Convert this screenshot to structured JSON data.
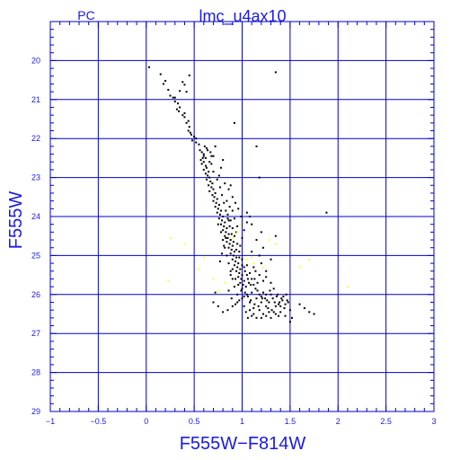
{
  "header": {
    "camera_label": "PC",
    "title": "lmc_u4ax10"
  },
  "colors": {
    "axis": "#0000cc",
    "grid": "#0000cc",
    "text": "#1a1ae6",
    "star_main": "#000000",
    "star_highlight": "#ffff33"
  },
  "chart_data": {
    "type": "scatter",
    "title": "lmc_u4ax10",
    "subtitle": "PC",
    "xlabel": "F555W−F814W",
    "ylabel": "F555W",
    "xlim": [
      -1,
      3
    ],
    "ylim": [
      29,
      19
    ],
    "y_inverted": true,
    "grid": true,
    "x_ticks": [
      -1,
      -0.5,
      0,
      0.5,
      1,
      1.5,
      2,
      2.5,
      3
    ],
    "x_tick_labels": [
      "−1",
      "−0.5",
      "0",
      "0.5",
      "1",
      "1.5",
      "2",
      "2.5",
      "3"
    ],
    "y_ticks": [
      20,
      21,
      22,
      23,
      24,
      25,
      26,
      27,
      28,
      29
    ],
    "y_tick_labels": [
      "20",
      "21",
      "22",
      "23",
      "24",
      "25",
      "26",
      "27",
      "28",
      "29"
    ],
    "series": [
      {
        "color": "#000000",
        "points": [
          [
            0.03,
            20.17
          ],
          [
            0.15,
            20.35
          ],
          [
            0.18,
            20.6
          ],
          [
            0.2,
            20.52
          ],
          [
            0.23,
            20.75
          ],
          [
            0.25,
            20.9
          ],
          [
            0.28,
            20.95
          ],
          [
            0.3,
            21.05
          ],
          [
            0.33,
            21.1
          ],
          [
            0.35,
            21.2
          ],
          [
            0.32,
            21.25
          ],
          [
            0.38,
            21.4
          ],
          [
            0.4,
            21.35
          ],
          [
            0.42,
            21.6
          ],
          [
            0.45,
            21.7
          ],
          [
            0.44,
            21.8
          ],
          [
            0.47,
            21.9
          ],
          [
            0.5,
            21.95
          ],
          [
            0.48,
            22.05
          ],
          [
            0.52,
            22.1
          ],
          [
            0.4,
            20.62
          ],
          [
            0.35,
            20.78
          ],
          [
            0.42,
            20.8
          ],
          [
            0.38,
            20.55
          ],
          [
            0.45,
            20.38
          ],
          [
            0.3,
            20.95
          ],
          [
            0.34,
            21.3
          ],
          [
            0.4,
            21.45
          ],
          [
            0.44,
            21.55
          ],
          [
            0.46,
            21.85
          ],
          [
            0.52,
            22.0
          ],
          [
            0.55,
            22.15
          ],
          [
            0.56,
            22.3
          ],
          [
            0.58,
            22.35
          ],
          [
            0.6,
            22.45
          ],
          [
            0.57,
            22.55
          ],
          [
            0.6,
            22.6
          ],
          [
            0.62,
            22.7
          ],
          [
            0.63,
            22.75
          ],
          [
            0.6,
            22.8
          ],
          [
            0.65,
            22.85
          ],
          [
            0.62,
            22.9
          ],
          [
            0.64,
            22.95
          ],
          [
            0.66,
            23.0
          ],
          [
            0.63,
            23.05
          ],
          [
            0.67,
            23.1
          ],
          [
            0.69,
            23.15
          ],
          [
            0.65,
            23.2
          ],
          [
            0.68,
            23.25
          ],
          [
            0.7,
            23.3
          ],
          [
            0.66,
            23.35
          ],
          [
            0.72,
            23.4
          ],
          [
            0.69,
            23.45
          ],
          [
            0.71,
            23.5
          ],
          [
            0.74,
            23.55
          ],
          [
            0.7,
            23.6
          ],
          [
            0.73,
            23.65
          ],
          [
            0.76,
            23.7
          ],
          [
            0.72,
            23.75
          ],
          [
            0.75,
            23.8
          ],
          [
            0.78,
            23.85
          ],
          [
            0.74,
            23.9
          ],
          [
            0.77,
            23.95
          ],
          [
            0.8,
            24.0
          ],
          [
            0.76,
            24.05
          ],
          [
            0.79,
            24.1
          ],
          [
            0.82,
            24.15
          ],
          [
            0.78,
            24.2
          ],
          [
            0.81,
            24.25
          ],
          [
            0.84,
            24.3
          ],
          [
            0.8,
            24.35
          ],
          [
            0.83,
            24.4
          ],
          [
            0.86,
            24.45
          ],
          [
            0.82,
            24.5
          ],
          [
            0.85,
            24.55
          ],
          [
            0.88,
            24.6
          ],
          [
            0.84,
            24.65
          ],
          [
            0.87,
            24.7
          ],
          [
            0.9,
            24.75
          ],
          [
            0.86,
            24.8
          ],
          [
            0.89,
            24.85
          ],
          [
            0.92,
            24.9
          ],
          [
            0.88,
            24.95
          ],
          [
            0.91,
            25.0
          ],
          [
            0.94,
            25.05
          ],
          [
            0.9,
            25.1
          ],
          [
            0.93,
            25.15
          ],
          [
            0.96,
            25.2
          ],
          [
            0.92,
            25.25
          ],
          [
            0.95,
            25.3
          ],
          [
            0.98,
            25.35
          ],
          [
            0.94,
            25.4
          ],
          [
            0.97,
            25.45
          ],
          [
            1.0,
            25.5
          ],
          [
            0.96,
            25.55
          ],
          [
            0.99,
            25.6
          ],
          [
            1.02,
            25.65
          ],
          [
            0.98,
            25.7
          ],
          [
            1.01,
            25.75
          ],
          [
            1.04,
            25.8
          ],
          [
            0.85,
            23.95
          ],
          [
            0.88,
            24.1
          ],
          [
            0.9,
            24.3
          ],
          [
            0.92,
            24.5
          ],
          [
            0.95,
            24.7
          ],
          [
            0.97,
            24.9
          ],
          [
            1.0,
            25.1
          ],
          [
            1.02,
            25.3
          ],
          [
            1.05,
            25.5
          ],
          [
            1.07,
            25.7
          ],
          [
            0.75,
            24.2
          ],
          [
            0.78,
            24.4
          ],
          [
            0.8,
            24.6
          ],
          [
            0.82,
            24.8
          ],
          [
            0.84,
            25.0
          ],
          [
            0.86,
            25.2
          ],
          [
            0.88,
            25.4
          ],
          [
            0.9,
            25.6
          ],
          [
            0.92,
            25.8
          ],
          [
            0.95,
            26.0
          ],
          [
            1.1,
            25.6
          ],
          [
            1.12,
            25.75
          ],
          [
            1.14,
            25.85
          ],
          [
            1.16,
            25.9
          ],
          [
            1.18,
            26.0
          ],
          [
            1.2,
            26.05
          ],
          [
            1.22,
            25.95
          ],
          [
            1.24,
            26.1
          ],
          [
            1.26,
            26.15
          ],
          [
            1.28,
            26.2
          ],
          [
            1.3,
            26.0
          ],
          [
            1.32,
            26.1
          ],
          [
            1.34,
            26.2
          ],
          [
            1.36,
            26.05
          ],
          [
            1.38,
            26.25
          ],
          [
            1.4,
            26.3
          ],
          [
            1.42,
            26.15
          ],
          [
            1.44,
            26.35
          ],
          [
            1.46,
            26.0
          ],
          [
            1.48,
            26.2
          ],
          [
            1.1,
            25.95
          ],
          [
            1.15,
            26.1
          ],
          [
            1.2,
            26.2
          ],
          [
            1.25,
            26.3
          ],
          [
            1.05,
            26.0
          ],
          [
            1.08,
            26.2
          ],
          [
            1.12,
            26.35
          ],
          [
            1.18,
            26.4
          ],
          [
            1.22,
            26.5
          ],
          [
            1.28,
            26.45
          ],
          [
            1.0,
            26.1
          ],
          [
            1.02,
            26.3
          ],
          [
            1.04,
            26.45
          ],
          [
            0.95,
            26.2
          ],
          [
            0.9,
            26.3
          ],
          [
            0.85,
            26.4
          ],
          [
            0.8,
            26.45
          ],
          [
            0.75,
            26.3
          ],
          [
            0.7,
            26.2
          ],
          [
            0.72,
            25.95
          ],
          [
            1.33,
            26.45
          ],
          [
            1.38,
            26.55
          ],
          [
            1.5,
            26.4
          ],
          [
            1.52,
            26.6
          ],
          [
            1.6,
            26.25
          ],
          [
            1.65,
            26.35
          ],
          [
            1.7,
            26.45
          ],
          [
            1.75,
            26.5
          ],
          [
            1.5,
            26.7
          ],
          [
            1.45,
            26.55
          ],
          [
            1.2,
            25.2
          ],
          [
            1.25,
            25.4
          ],
          [
            1.18,
            25.0
          ],
          [
            1.22,
            24.8
          ],
          [
            1.3,
            25.1
          ],
          [
            1.15,
            24.6
          ],
          [
            1.1,
            24.9
          ],
          [
            1.12,
            25.3
          ],
          [
            1.08,
            25.45
          ],
          [
            1.05,
            25.25
          ],
          [
            0.98,
            24.75
          ],
          [
            1.0,
            24.55
          ],
          [
            1.02,
            24.35
          ],
          [
            1.05,
            24.15
          ],
          [
            1.08,
            24.0
          ],
          [
            0.95,
            24.25
          ],
          [
            0.92,
            24.05
          ],
          [
            0.9,
            23.85
          ],
          [
            0.87,
            23.75
          ],
          [
            0.84,
            23.6
          ],
          [
            1.35,
            20.3
          ],
          [
            1.15,
            22.2
          ],
          [
            1.18,
            23.0
          ],
          [
            0.92,
            21.6
          ],
          [
            0.88,
            23.2
          ],
          [
            1.88,
            23.9
          ],
          [
            1.35,
            24.5
          ],
          [
            1.2,
            24.4
          ],
          [
            1.1,
            24.2
          ],
          [
            1.05,
            23.9
          ],
          [
            0.8,
            22.55
          ],
          [
            0.78,
            22.75
          ],
          [
            0.76,
            22.95
          ],
          [
            0.82,
            23.15
          ],
          [
            0.86,
            23.3
          ],
          [
            0.9,
            23.5
          ],
          [
            0.93,
            23.65
          ],
          [
            0.96,
            23.8
          ],
          [
            0.99,
            24.0
          ],
          [
            0.94,
            24.4
          ],
          [
            0.72,
            22.2
          ],
          [
            0.7,
            22.45
          ],
          [
            0.68,
            22.65
          ],
          [
            0.7,
            22.85
          ],
          [
            0.74,
            23.05
          ],
          [
            0.77,
            23.25
          ],
          [
            0.79,
            23.45
          ],
          [
            0.81,
            23.65
          ],
          [
            0.83,
            23.85
          ],
          [
            0.86,
            24.1
          ],
          [
            1.0,
            25.85
          ],
          [
            1.03,
            25.95
          ],
          [
            1.06,
            26.05
          ],
          [
            1.09,
            26.15
          ],
          [
            1.13,
            26.25
          ],
          [
            1.17,
            26.3
          ],
          [
            1.21,
            26.1
          ],
          [
            1.25,
            26.0
          ],
          [
            1.29,
            25.9
          ],
          [
            1.33,
            25.85
          ],
          [
            1.37,
            26.0
          ],
          [
            1.41,
            26.1
          ],
          [
            1.45,
            26.25
          ],
          [
            1.27,
            26.35
          ],
          [
            1.31,
            26.4
          ],
          [
            1.35,
            26.3
          ],
          [
            1.39,
            26.2
          ],
          [
            1.43,
            26.05
          ],
          [
            1.47,
            26.15
          ],
          [
            1.3,
            25.7
          ],
          [
            1.25,
            25.55
          ],
          [
            1.22,
            25.65
          ],
          [
            1.18,
            25.5
          ],
          [
            1.14,
            25.4
          ],
          [
            1.16,
            25.7
          ],
          [
            1.13,
            25.6
          ],
          [
            1.09,
            25.75
          ],
          [
            1.06,
            25.6
          ],
          [
            1.03,
            25.4
          ],
          [
            1.0,
            25.25
          ],
          [
            0.97,
            25.05
          ],
          [
            0.94,
            24.85
          ],
          [
            0.91,
            24.65
          ],
          [
            0.89,
            24.45
          ],
          [
            0.87,
            24.25
          ],
          [
            0.85,
            24.05
          ],
          [
            0.83,
            24.55
          ],
          [
            0.81,
            24.75
          ],
          [
            0.79,
            24.95
          ],
          [
            0.77,
            25.15
          ],
          [
            0.6,
            22.4
          ],
          [
            0.58,
            22.65
          ],
          [
            0.62,
            22.5
          ],
          [
            0.64,
            22.3
          ],
          [
            0.66,
            22.6
          ],
          [
            0.68,
            22.45
          ],
          [
            0.63,
            22.25
          ],
          [
            0.67,
            22.35
          ],
          [
            0.61,
            22.2
          ],
          [
            0.59,
            22.5
          ],
          [
            0.88,
            25.5
          ],
          [
            0.9,
            25.35
          ],
          [
            0.93,
            25.6
          ],
          [
            0.96,
            25.75
          ],
          [
            0.99,
            25.9
          ],
          [
            1.02,
            26.05
          ],
          [
            0.97,
            26.15
          ],
          [
            0.93,
            26.25
          ],
          [
            0.89,
            26.1
          ],
          [
            0.86,
            25.9
          ],
          [
            1.15,
            26.6
          ],
          [
            1.2,
            26.6
          ],
          [
            1.25,
            26.55
          ],
          [
            1.3,
            26.6
          ],
          [
            1.35,
            26.5
          ],
          [
            1.4,
            26.45
          ],
          [
            1.12,
            26.5
          ],
          [
            1.08,
            26.4
          ],
          [
            1.06,
            26.6
          ],
          [
            1.1,
            26.55
          ]
        ]
      },
      {
        "color": "#ffff33",
        "points": [
          [
            0.25,
            24.55
          ],
          [
            0.4,
            24.7
          ],
          [
            0.23,
            25.65
          ],
          [
            0.55,
            25.35
          ],
          [
            0.7,
            25.6
          ],
          [
            0.75,
            25.9
          ],
          [
            1.1,
            25.05
          ],
          [
            1.22,
            25.3
          ],
          [
            1.35,
            24.7
          ],
          [
            1.6,
            25.3
          ],
          [
            1.7,
            25.1
          ],
          [
            2.1,
            25.8
          ],
          [
            0.95,
            24.4
          ],
          [
            0.98,
            24.2
          ],
          [
            0.9,
            24.55
          ],
          [
            1.05,
            25.1
          ],
          [
            1.12,
            25.2
          ],
          [
            1.28,
            24.6
          ],
          [
            0.82,
            25.7
          ],
          [
            0.6,
            25.05
          ]
        ]
      }
    ]
  }
}
